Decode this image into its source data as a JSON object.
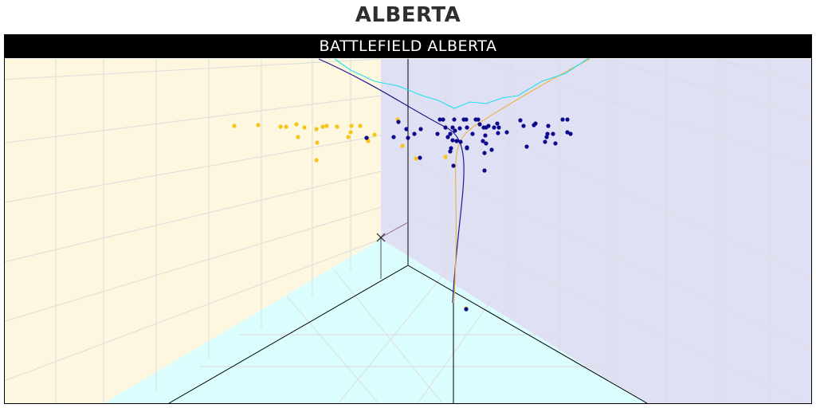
{
  "page": {
    "title": "ALBERTA"
  },
  "chart_data": {
    "type": "scatter",
    "subtitle": "BATTLEFIELD ALBERTA",
    "projection": "3d-isometric",
    "grid": true,
    "colors": {
      "left_wall": "#fdf7df",
      "right_wall": "#e0e0f5",
      "floor": "#dcfdfd",
      "grid": "#dcdcdc",
      "team_a": "#f5c518",
      "team_b": "#0b0b8c",
      "curve_team_a": "#f0b040",
      "curve_team_b": "#1a1a8c",
      "curve_cyan": "#20e0e8",
      "axis": "#000000"
    },
    "series": [
      {
        "key": "yellow",
        "color": "#f5c518",
        "points": [
          [
            294,
            158
          ],
          [
            324,
            157
          ],
          [
            352,
            159
          ],
          [
            359,
            159
          ],
          [
            372,
            156
          ],
          [
            382,
            160
          ],
          [
            374,
            172
          ],
          [
            397,
            162
          ],
          [
            405,
            159
          ],
          [
            410,
            158
          ],
          [
            423,
            159
          ],
          [
            441,
            158
          ],
          [
            452,
            158
          ],
          [
            437,
            172
          ],
          [
            440,
            166
          ],
          [
            461,
            174
          ],
          [
            470,
            169
          ],
          [
            462,
            177
          ],
          [
            499,
            150
          ],
          [
            398,
            179
          ],
          [
            505,
            183
          ],
          [
            397,
            201
          ],
          [
            522,
            199
          ],
          [
            559,
            197
          ],
          [
            585,
            387
          ]
        ]
      },
      {
        "key": "navy",
        "color": "#0b0b8c",
        "points": [
          [
            460,
            173
          ],
          [
            494,
            172
          ],
          [
            500,
            153
          ],
          [
            510,
            162
          ],
          [
            512,
            173
          ],
          [
            520,
            168
          ],
          [
            528,
            162
          ],
          [
            527,
            198
          ],
          [
            549,
            168
          ],
          [
            552,
            150
          ],
          [
            556,
            150
          ],
          [
            559,
            160
          ],
          [
            562,
            172
          ],
          [
            565,
            168
          ],
          [
            568,
            176
          ],
          [
            568,
            160
          ],
          [
            571,
            164
          ],
          [
            570,
            150
          ],
          [
            566,
            186
          ],
          [
            565,
            190
          ],
          [
            573,
            177
          ],
          [
            577,
            161
          ],
          [
            578,
            178
          ],
          [
            582,
            150
          ],
          [
            585,
            150
          ],
          [
            586,
            160
          ],
          [
            586,
            185
          ],
          [
            586,
            186
          ],
          [
            593,
            168
          ],
          [
            597,
            150
          ],
          [
            600,
            150
          ],
          [
            602,
            156
          ],
          [
            607,
            160
          ],
          [
            610,
            160
          ],
          [
            609,
            170
          ],
          [
            613,
            158
          ],
          [
            620,
            160
          ],
          [
            624,
            155
          ],
          [
            626,
            160
          ],
          [
            625,
            167
          ],
          [
            636,
            166
          ],
          [
            610,
            180
          ],
          [
            606,
            177
          ],
          [
            608,
            192
          ],
          [
            617,
            188
          ],
          [
            653,
            151
          ],
          [
            657,
            158
          ],
          [
            670,
            157
          ],
          [
            672,
            155
          ],
          [
            688,
            158
          ],
          [
            687,
            168
          ],
          [
            686,
            172
          ],
          [
            694,
            168
          ],
          [
            684,
            178
          ],
          [
            697,
            180
          ],
          [
            706,
            150
          ],
          [
            712,
            150
          ],
          [
            712,
            166
          ],
          [
            716,
            168
          ],
          [
            569,
            208
          ],
          [
            608,
            214
          ],
          [
            661,
            184
          ],
          [
            585,
            388
          ]
        ]
      }
    ]
  }
}
